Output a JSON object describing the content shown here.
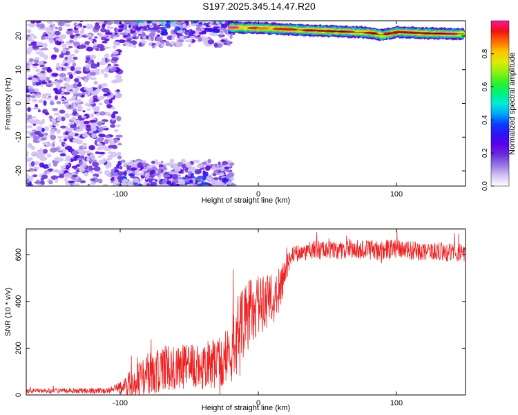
{
  "title": "S197.2025.345.14.47.R20",
  "colors": {
    "snr_line": "#ee2222",
    "colormap": [
      "#ffffff",
      "#d4c2f4",
      "#9a78e6",
      "#6a30de",
      "#5a00e8",
      "#2e12f4",
      "#0a3cff",
      "#00a8f8",
      "#00ecd8",
      "#00f07a",
      "#2cf22c",
      "#8ef010",
      "#dcec08",
      "#ffc400",
      "#ff6a00",
      "#f01010",
      "#ff14a0"
    ]
  },
  "chart_data": [
    {
      "type": "heatmap",
      "xlabel": "Height of straight line (km)",
      "ylabel": "Frequency (Hz)",
      "xlim": [
        -168,
        150
      ],
      "ylim": [
        -24.5,
        24.5
      ],
      "xticks": [
        -100,
        0,
        100
      ],
      "xtick_labels": [
        "-100",
        "0",
        "100"
      ],
      "yticks": [
        -20,
        -10,
        0,
        10,
        20
      ],
      "ytick_labels": [
        "-20",
        "-10",
        "0",
        "10",
        "20"
      ],
      "colorbar": {
        "label": "Normalized spectral amplitude",
        "range": [
          0,
          1
        ],
        "ticks": [
          0.0,
          0.2,
          0.4,
          0.6,
          0.8
        ],
        "tick_labels": [
          "0.0",
          "0.2",
          "0.4",
          "0.6",
          "0.8"
        ]
      },
      "ridge": {
        "description_points_x": [
          -18,
          0,
          20,
          40,
          60,
          80,
          90,
          100,
          120,
          140,
          148
        ],
        "frequency_y": [
          22.5,
          22.3,
          22.0,
          21.6,
          21.3,
          21.0,
          20.2,
          21.2,
          20.8,
          20.6,
          20.6
        ]
      },
      "regions": [
        {
          "x": [
            -168,
            -100
          ],
          "y": [
            -24.5,
            24.5
          ],
          "max_amplitude": 0.25
        },
        {
          "x": [
            -100,
            -18
          ],
          "y": [
            17,
            24.5
          ],
          "max_amplitude": 0.45
        },
        {
          "x": [
            -100,
            -18
          ],
          "y": [
            -24.5,
            -17
          ],
          "max_amplitude": 0.45
        }
      ]
    },
    {
      "type": "line",
      "xlabel": "Height of straight line (km)",
      "ylabel": "SNR (10 * v/v)",
      "xlim": [
        -168,
        150
      ],
      "ylim": [
        0,
        710
      ],
      "xticks": [
        -100,
        0,
        100
      ],
      "xtick_labels": [
        "-100",
        "0",
        "100"
      ],
      "yticks": [
        0,
        200,
        400,
        600
      ],
      "ytick_labels": [
        "0",
        "200",
        "400",
        "600"
      ],
      "envelope": {
        "x": [
          -168,
          -110,
          -100,
          -90,
          -80,
          -70,
          -60,
          -50,
          -40,
          -30,
          -20,
          -15,
          -10,
          0,
          10,
          15,
          20,
          25,
          40,
          60,
          80,
          100,
          120,
          150
        ],
        "center": [
          18,
          18,
          30,
          60,
          90,
          110,
          120,
          120,
          125,
          140,
          160,
          250,
          320,
          390,
          410,
          440,
          540,
          600,
          620,
          620,
          620,
          620,
          615,
          610
        ],
        "spread": [
          10,
          12,
          25,
          70,
          90,
          100,
          100,
          100,
          100,
          110,
          130,
          160,
          160,
          130,
          120,
          100,
          60,
          40,
          40,
          40,
          45,
          45,
          40,
          40
        ]
      },
      "series": [
        {
          "values_note": "noisy SNR trace"
        }
      ]
    }
  ],
  "labels": {
    "top_xlabel": "Height of straight line (km)",
    "top_ylabel": "Frequency (Hz)",
    "bottom_xlabel": "Height of straight line (km)",
    "bottom_ylabel": "SNR (10 * v/v)",
    "colorbar_label": "Normalized spectral amplitude"
  }
}
